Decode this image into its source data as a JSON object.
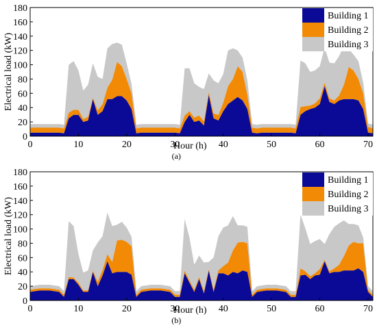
{
  "chart_data": [
    {
      "type": "area",
      "stacked": true,
      "caption": "(a)",
      "xlabel": "Hour (h)",
      "ylabel": "Electrical load (kW)",
      "xlim": [
        0,
        71
      ],
      "ylim": [
        0,
        180
      ],
      "xticks": [
        0,
        10,
        20,
        30,
        40,
        50,
        60,
        70
      ],
      "yticks": [
        0,
        20,
        40,
        60,
        80,
        100,
        120,
        140,
        160,
        180
      ],
      "legend_position": "top-right",
      "x": [
        0,
        1,
        2,
        3,
        4,
        5,
        6,
        7,
        8,
        9,
        10,
        11,
        12,
        13,
        14,
        15,
        16,
        17,
        18,
        19,
        20,
        21,
        22,
        23,
        24,
        25,
        26,
        27,
        28,
        29,
        30,
        31,
        32,
        33,
        34,
        35,
        36,
        37,
        38,
        39,
        40,
        41,
        42,
        43,
        44,
        45,
        46,
        47,
        48,
        49,
        50,
        51,
        52,
        53,
        54,
        55,
        56,
        57,
        58,
        59,
        60,
        61,
        62,
        63,
        64,
        65,
        66,
        67,
        68,
        69,
        70,
        71
      ],
      "series": [
        {
          "name": "Building 1",
          "color": "#0a0a96",
          "values": [
            5,
            5,
            5,
            5,
            5,
            5,
            5,
            4,
            25,
            30,
            30,
            20,
            22,
            52,
            30,
            35,
            52,
            52,
            56,
            56,
            50,
            38,
            4,
            5,
            5,
            5,
            5,
            5,
            5,
            5,
            5,
            4,
            20,
            30,
            20,
            22,
            15,
            58,
            25,
            22,
            35,
            45,
            50,
            55,
            50,
            38,
            5,
            4,
            5,
            5,
            5,
            5,
            5,
            5,
            5,
            4,
            30,
            35,
            38,
            40,
            45,
            70,
            48,
            45,
            50,
            52,
            52,
            52,
            50,
            38,
            5,
            4
          ]
        },
        {
          "name": "Building 2",
          "color": "#f28a05",
          "values": [
            7,
            7,
            7,
            7,
            7,
            7,
            7,
            7,
            8,
            7,
            7,
            4,
            5,
            2,
            6,
            10,
            16,
            27,
            48,
            42,
            30,
            22,
            7,
            7,
            7,
            7,
            7,
            7,
            7,
            7,
            7,
            7,
            9,
            5,
            6,
            7,
            6,
            4,
            7,
            8,
            12,
            25,
            30,
            43,
            40,
            20,
            7,
            7,
            7,
            7,
            7,
            7,
            7,
            7,
            7,
            7,
            11,
            7,
            5,
            6,
            8,
            5,
            5,
            5,
            7,
            20,
            45,
            40,
            30,
            22,
            8,
            7
          ]
        },
        {
          "name": "Building 3",
          "color": "#c8c8c8",
          "values": [
            5,
            5,
            5,
            5,
            5,
            5,
            5,
            5,
            67,
            68,
            55,
            40,
            45,
            48,
            47,
            35,
            55,
            50,
            27,
            30,
            22,
            13,
            5,
            5,
            5,
            5,
            5,
            5,
            5,
            5,
            5,
            5,
            66,
            60,
            48,
            40,
            45,
            26,
            46,
            44,
            40,
            50,
            43,
            22,
            20,
            20,
            5,
            5,
            5,
            5,
            5,
            5,
            5,
            5,
            5,
            5,
            65,
            60,
            47,
            46,
            45,
            49,
            50,
            52,
            55,
            55,
            25,
            22,
            25,
            15,
            5,
            5
          ]
        }
      ]
    },
    {
      "type": "area",
      "stacked": true,
      "caption": "(b)",
      "xlabel": "Hour (h)",
      "ylabel": "Electrical load (kW)",
      "xlim": [
        0,
        71
      ],
      "ylim": [
        0,
        180
      ],
      "xticks": [
        0,
        10,
        20,
        30,
        40,
        50,
        60,
        70
      ],
      "yticks": [
        0,
        20,
        40,
        60,
        80,
        100,
        120,
        140,
        160,
        180
      ],
      "legend_position": "top-right",
      "x": [
        0,
        1,
        2,
        3,
        4,
        5,
        6,
        7,
        8,
        9,
        10,
        11,
        12,
        13,
        14,
        15,
        16,
        17,
        18,
        19,
        20,
        21,
        22,
        23,
        24,
        25,
        26,
        27,
        28,
        29,
        30,
        31,
        32,
        33,
        34,
        35,
        36,
        37,
        38,
        39,
        40,
        41,
        42,
        43,
        44,
        45,
        46,
        47,
        48,
        49,
        50,
        51,
        52,
        53,
        54,
        55,
        56,
        57,
        58,
        59,
        60,
        61,
        62,
        63,
        64,
        65,
        66,
        67,
        68,
        69,
        70,
        71
      ],
      "series": [
        {
          "name": "Building 1",
          "color": "#0a0a96",
          "values": [
            12,
            13,
            14,
            14,
            14,
            13,
            12,
            5,
            30,
            30,
            22,
            12,
            12,
            40,
            20,
            35,
            55,
            38,
            40,
            40,
            40,
            36,
            5,
            12,
            13,
            14,
            14,
            14,
            13,
            12,
            5,
            5,
            38,
            25,
            12,
            30,
            10,
            42,
            12,
            38,
            38,
            35,
            40,
            38,
            42,
            40,
            5,
            12,
            13,
            14,
            14,
            14,
            13,
            12,
            5,
            5,
            35,
            36,
            30,
            35,
            36,
            55,
            38,
            40,
            40,
            42,
            42,
            42,
            45,
            40,
            12,
            5
          ]
        },
        {
          "name": "Building 2",
          "color": "#f28a05",
          "values": [
            3,
            3,
            3,
            3,
            3,
            3,
            3,
            3,
            3,
            2,
            3,
            2,
            2,
            2,
            6,
            8,
            10,
            16,
            44,
            45,
            42,
            40,
            3,
            3,
            3,
            3,
            3,
            3,
            3,
            3,
            3,
            3,
            4,
            3,
            3,
            3,
            3,
            2,
            3,
            4,
            10,
            18,
            30,
            43,
            40,
            40,
            3,
            3,
            3,
            3,
            3,
            3,
            3,
            3,
            3,
            3,
            10,
            5,
            4,
            3,
            8,
            2,
            3,
            5,
            10,
            20,
            35,
            40,
            35,
            40,
            3,
            3
          ]
        },
        {
          "name": "Building 3",
          "color": "#c8c8c8",
          "values": [
            5,
            5,
            5,
            5,
            5,
            5,
            5,
            5,
            78,
            72,
            40,
            25,
            28,
            28,
            55,
            47,
            58,
            50,
            22,
            25,
            20,
            13,
            5,
            5,
            5,
            5,
            5,
            5,
            5,
            5,
            5,
            5,
            72,
            60,
            35,
            30,
            40,
            10,
            45,
            48,
            54,
            52,
            48,
            24,
            23,
            23,
            5,
            5,
            5,
            5,
            5,
            5,
            5,
            5,
            5,
            5,
            75,
            60,
            45,
            45,
            42,
            22,
            52,
            58,
            58,
            50,
            30,
            25,
            25,
            8,
            5,
            5
          ]
        }
      ]
    }
  ]
}
